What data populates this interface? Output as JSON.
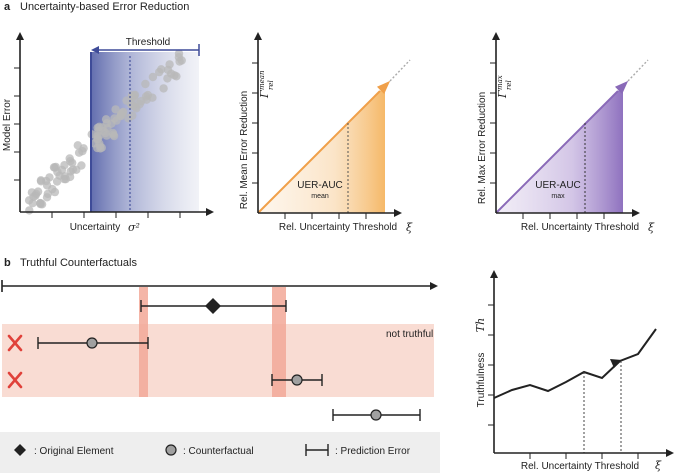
{
  "panel_a": {
    "letter": "a",
    "title": "Uncertainty-based Error Reduction",
    "plot1": {
      "ylabel": "Model Error",
      "xlabel": "Uncertainty",
      "xsymbol": "σ²",
      "threshold_label": "Threshold"
    },
    "plot2": {
      "ylabel": "Rel. Mean Error Reduction",
      "ymax_symbol": "Γ",
      "ymax_sup": "mean",
      "ymax_sub": "rel",
      "xlabel": "Rel. Uncertainty Threshold",
      "xsymbol": "ξ",
      "auc_label": "UER-AUC",
      "auc_sub": "mean",
      "accent": "#f5a84a"
    },
    "plot3": {
      "ylabel": "Rel. Max Error Reduction",
      "ymax_symbol": "Γ",
      "ymax_sup": "max",
      "ymax_sub": "rel",
      "xlabel": "Rel. Uncertainty Threshold",
      "xsymbol": "ξ",
      "auc_label": "UER-AUC",
      "auc_sub": "max",
      "accent": "#8a6ab8"
    }
  },
  "panel_b": {
    "letter": "b",
    "title": "Truthful Counterfactuals",
    "not_truthful_label": "not truthful",
    "legend": {
      "original": ": Original Element",
      "counterfactual": ": Counterfactual",
      "error": ": Prediction Error"
    },
    "chart": {
      "ylabel": "Truthfulness",
      "ysymbol": "Th",
      "xlabel": "Rel. Uncertainty Threshold",
      "xsymbol": "ξ"
    },
    "colors": {
      "band": "#f9dcd3",
      "highlight": "#f2a898",
      "cross": "#e0413a",
      "counterfactual": "#a0a0a0"
    }
  }
}
